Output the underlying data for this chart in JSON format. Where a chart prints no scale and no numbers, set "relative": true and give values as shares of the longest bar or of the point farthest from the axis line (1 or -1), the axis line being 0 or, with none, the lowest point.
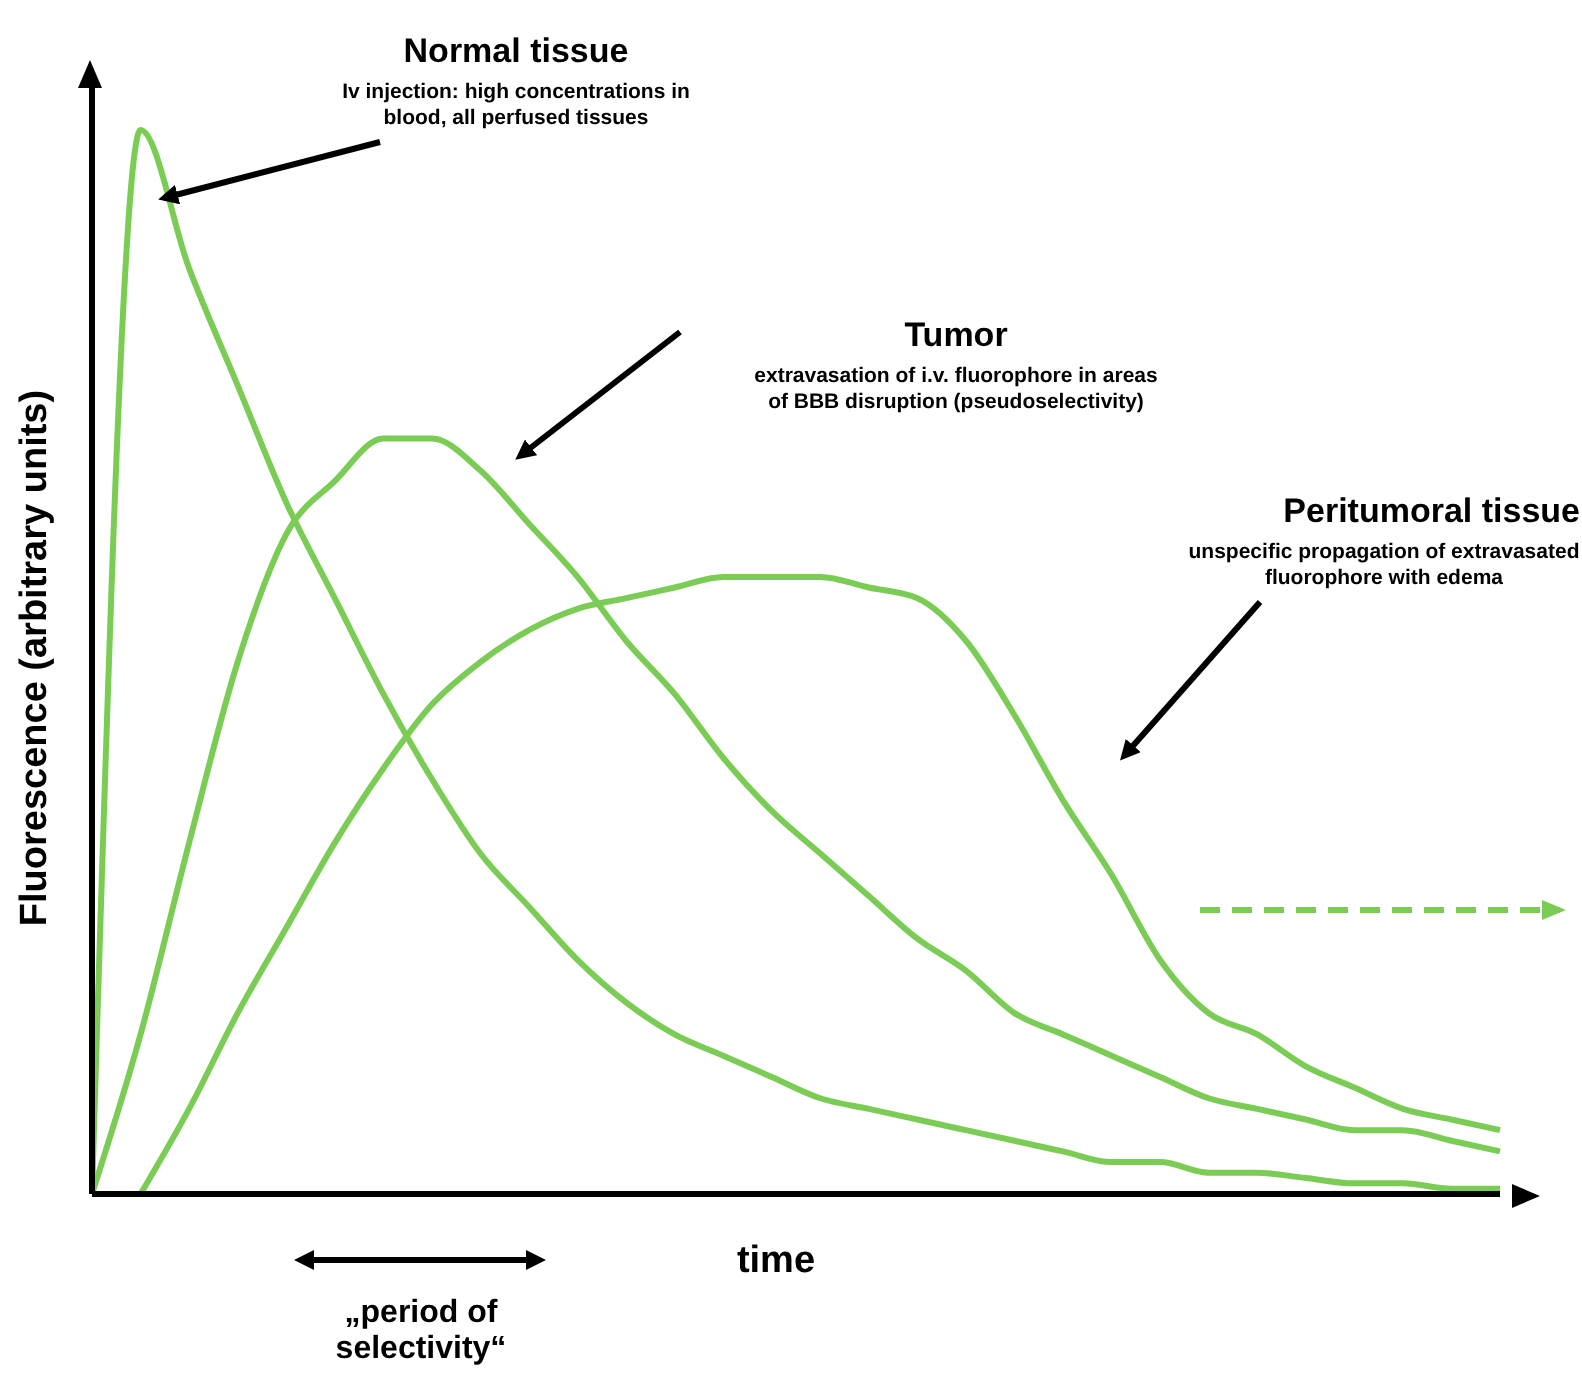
{
  "chart_data": {
    "type": "line",
    "relative": true,
    "xlabel": "time",
    "ylabel": "Fluorescence (arbitrary units)",
    "marker": "none",
    "line_style": "solid",
    "categories": [
      null,
      null,
      null,
      null,
      null,
      null,
      null,
      null,
      null,
      null,
      null,
      null,
      null,
      null,
      null,
      null,
      null,
      null,
      null,
      null,
      null,
      null,
      null,
      null,
      null,
      null,
      null,
      null,
      null,
      null
    ],
    "series": [
      {
        "color": "#7acc55",
        "values": [
          0,
          1.0,
          0.87,
          0.76,
          0.65,
          0.56,
          0.47,
          0.39,
          0.32,
          0.27,
          0.22,
          0.18,
          0.15,
          0.13,
          0.11,
          0.09,
          0.08,
          0.07,
          0.06,
          0.05,
          0.04,
          0.03,
          0.03,
          0.02,
          0.02,
          0.015,
          0.01,
          0.01,
          0.005,
          0.005
        ]
      },
      {
        "color": "#7acc55",
        "values": [
          0,
          0.15,
          0.33,
          0.5,
          0.62,
          0.67,
          0.71,
          0.71,
          0.68,
          0.63,
          0.58,
          0.52,
          0.47,
          0.41,
          0.36,
          0.32,
          0.28,
          0.24,
          0.21,
          0.17,
          0.15,
          0.13,
          0.11,
          0.09,
          0.08,
          0.07,
          0.06,
          0.06,
          0.05,
          0.04
        ]
      },
      {
        "color": "#7acc55",
        "values": [
          null,
          0,
          0.08,
          0.17,
          0.25,
          0.33,
          0.4,
          0.46,
          0.5,
          0.53,
          0.55,
          0.56,
          0.57,
          0.58,
          0.58,
          0.58,
          0.57,
          0.56,
          0.52,
          0.45,
          0.37,
          0.3,
          0.22,
          0.17,
          0.15,
          0.12,
          0.1,
          0.08,
          0.07,
          0.06
        ]
      }
    ],
    "annotations": [
      "Normal tissue",
      "Iv injection: high concentrations in blood, all perfused tissues",
      "Tumor",
      "extravasation of i.v. fluorophore in areas of BBB disruption (pseudoselectivity)",
      "Peritumoral tissue",
      "unspecific propagation of extravasated fluorophore with edema",
      "„period of selectivity“"
    ]
  }
}
